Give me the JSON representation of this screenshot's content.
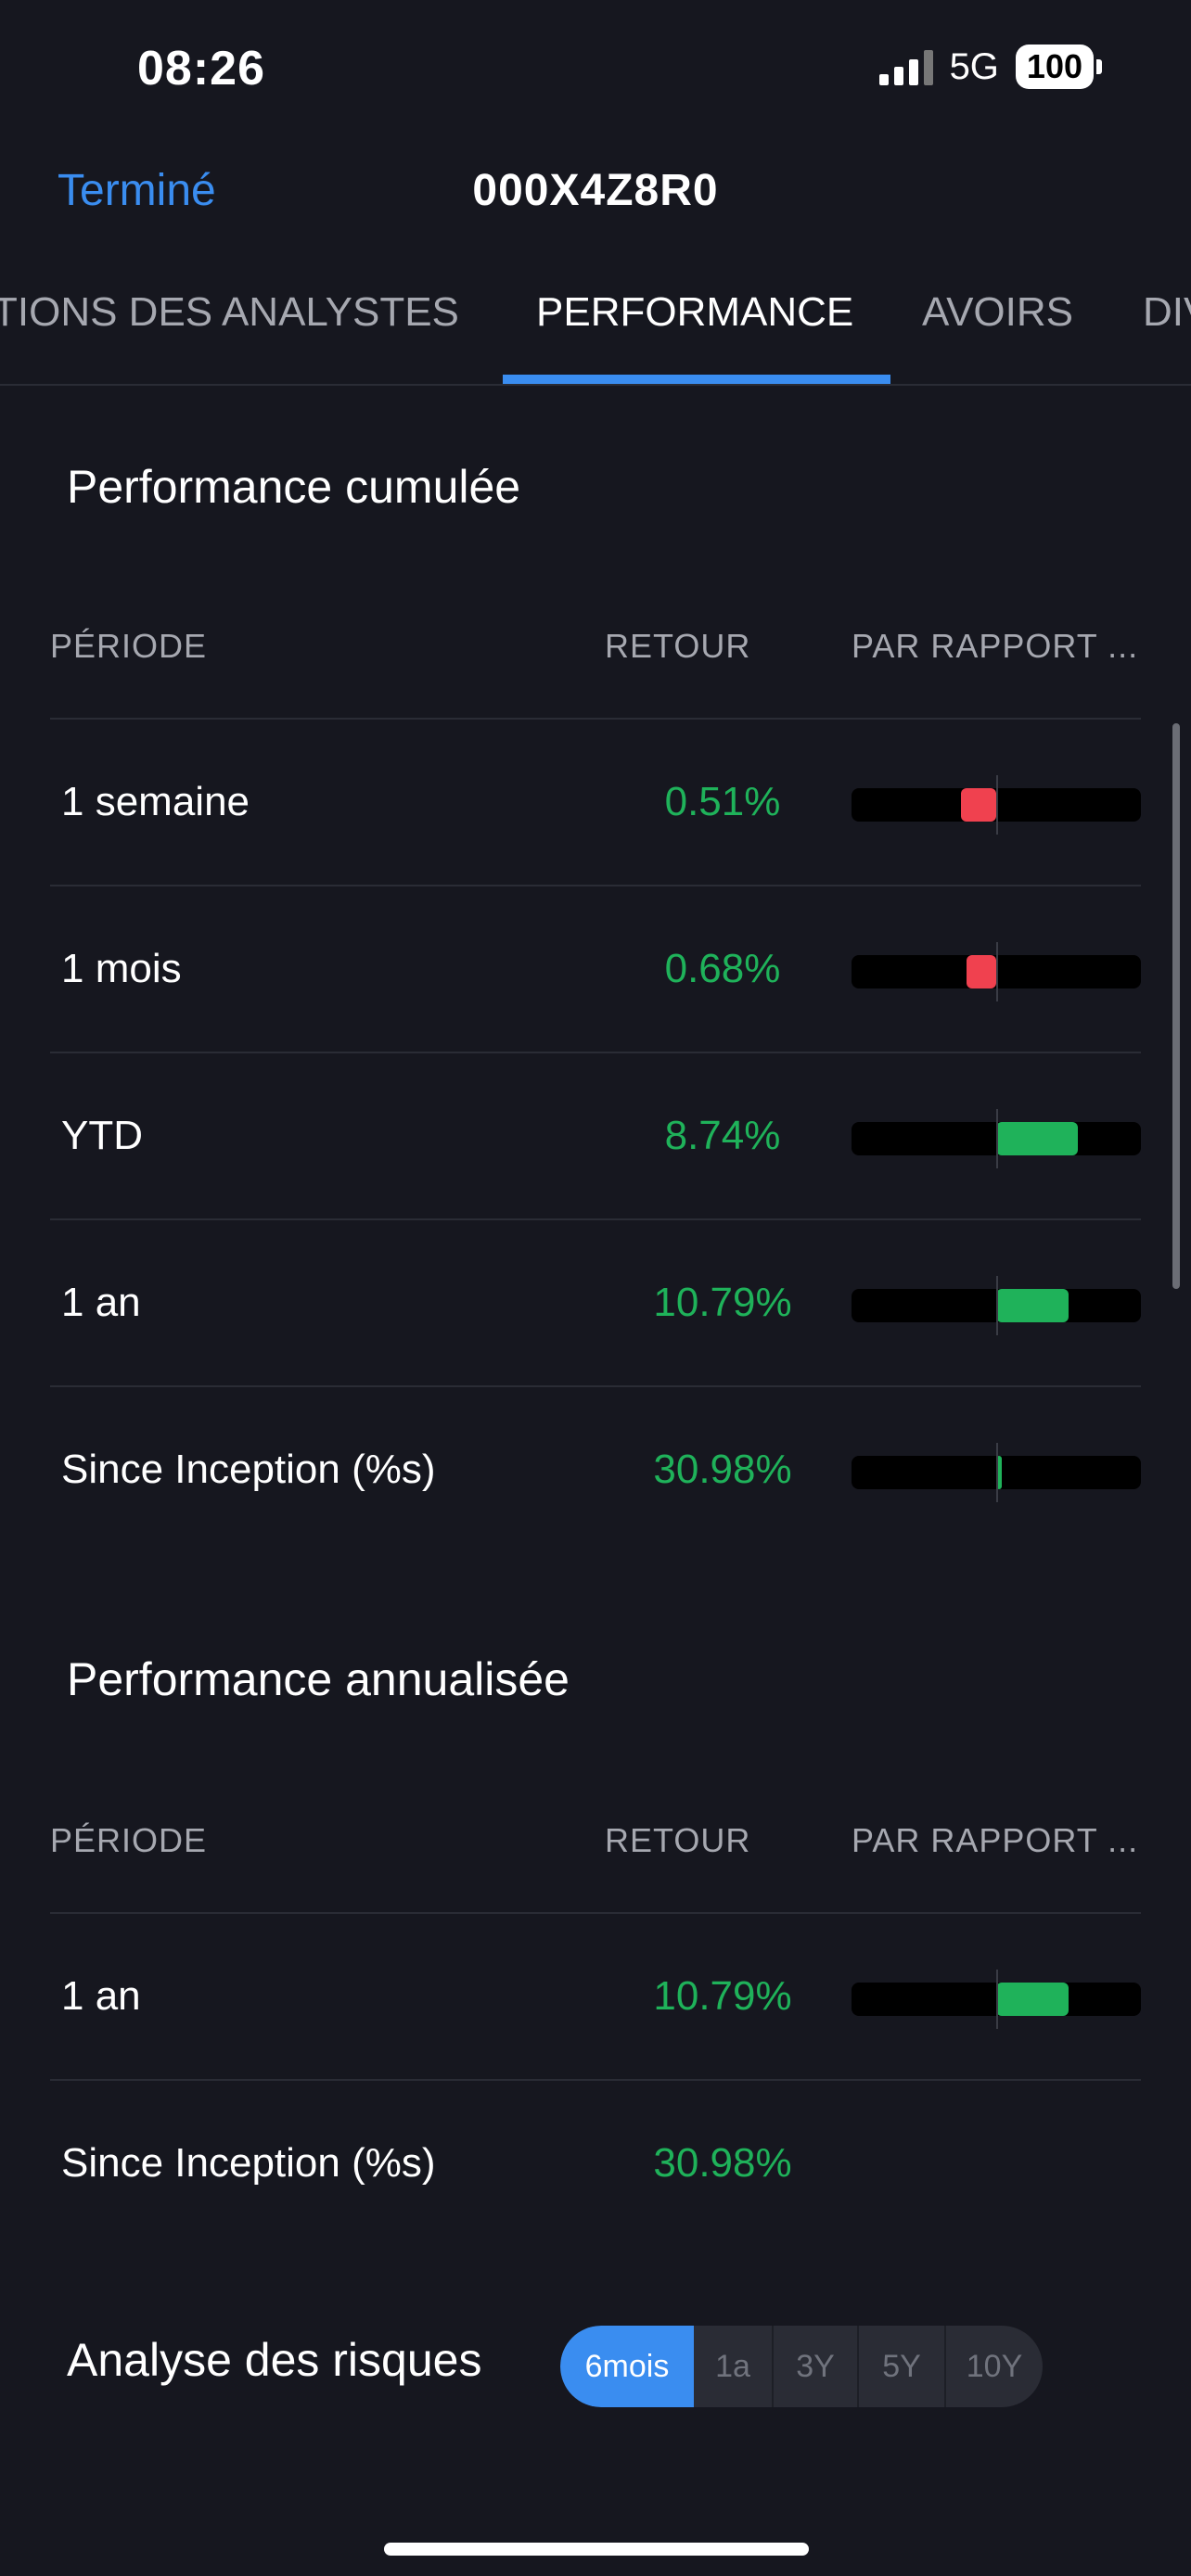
{
  "status": {
    "time": "08:26",
    "network": "5G",
    "battery": "100"
  },
  "nav": {
    "done_label": "Terminé",
    "title": "000X4Z8R0"
  },
  "tabs": [
    "TIONS DES ANALYSTES",
    "PERFORMANCE",
    "AVOIRS",
    "DIV"
  ],
  "cumulative": {
    "title": "Performance cumulée",
    "headers": {
      "period": "PÉRIODE",
      "return": "RETOUR",
      "compare": "PAR RAPPORT ..."
    },
    "rows": [
      {
        "period": "1 semaine",
        "return": "0.51%"
      },
      {
        "period": "1 mois",
        "return": "0.68%"
      },
      {
        "period": "YTD",
        "return": "8.74%"
      },
      {
        "period": "1 an",
        "return": "10.79%"
      },
      {
        "period": "Since Inception (%s)",
        "return": "30.98%"
      }
    ]
  },
  "annualized": {
    "title": "Performance annualisée",
    "headers": {
      "period": "PÉRIODE",
      "return": "RETOUR",
      "compare": "PAR RAPPORT ..."
    },
    "rows": [
      {
        "period": "1 an",
        "return": "10.79%"
      },
      {
        "period": "Since Inception (%s)",
        "return": "30.98%"
      }
    ]
  },
  "risk": {
    "title": "Analyse des risques",
    "periods": [
      "6mois",
      "1a",
      "3Y",
      "5Y",
      "10Y"
    ]
  },
  "colors": {
    "accent": "#3a8df0",
    "positive": "#1fb25a",
    "negative": "#f0414f",
    "background": "#16171f"
  }
}
